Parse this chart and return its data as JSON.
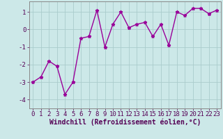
{
  "x": [
    0,
    1,
    2,
    3,
    4,
    5,
    6,
    7,
    8,
    9,
    10,
    11,
    12,
    13,
    14,
    15,
    16,
    17,
    18,
    19,
    20,
    21,
    22,
    23
  ],
  "y": [
    -3.0,
    -2.7,
    -1.8,
    -2.1,
    -3.7,
    -3.0,
    -0.5,
    -0.4,
    1.1,
    -1.0,
    0.3,
    1.0,
    0.1,
    0.3,
    0.4,
    -0.4,
    0.3,
    -0.9,
    1.0,
    0.8,
    1.2,
    1.2,
    0.9,
    1.1
  ],
  "line_color": "#990099",
  "marker": "*",
  "marker_size": 3.5,
  "bg_color": "#cce8e8",
  "grid_color": "#aacccc",
  "xlabel": "Windchill (Refroidissement éolien,°C)",
  "ylim": [
    -4.5,
    1.6
  ],
  "yticks": [
    -4,
    -3,
    -2,
    -1,
    0,
    1
  ],
  "xticks": [
    0,
    1,
    2,
    3,
    4,
    5,
    6,
    7,
    8,
    9,
    10,
    11,
    12,
    13,
    14,
    15,
    16,
    17,
    18,
    19,
    20,
    21,
    22,
    23
  ],
  "xlabel_fontsize": 7.0,
  "tick_fontsize": 6.5,
  "line_width": 1.0
}
